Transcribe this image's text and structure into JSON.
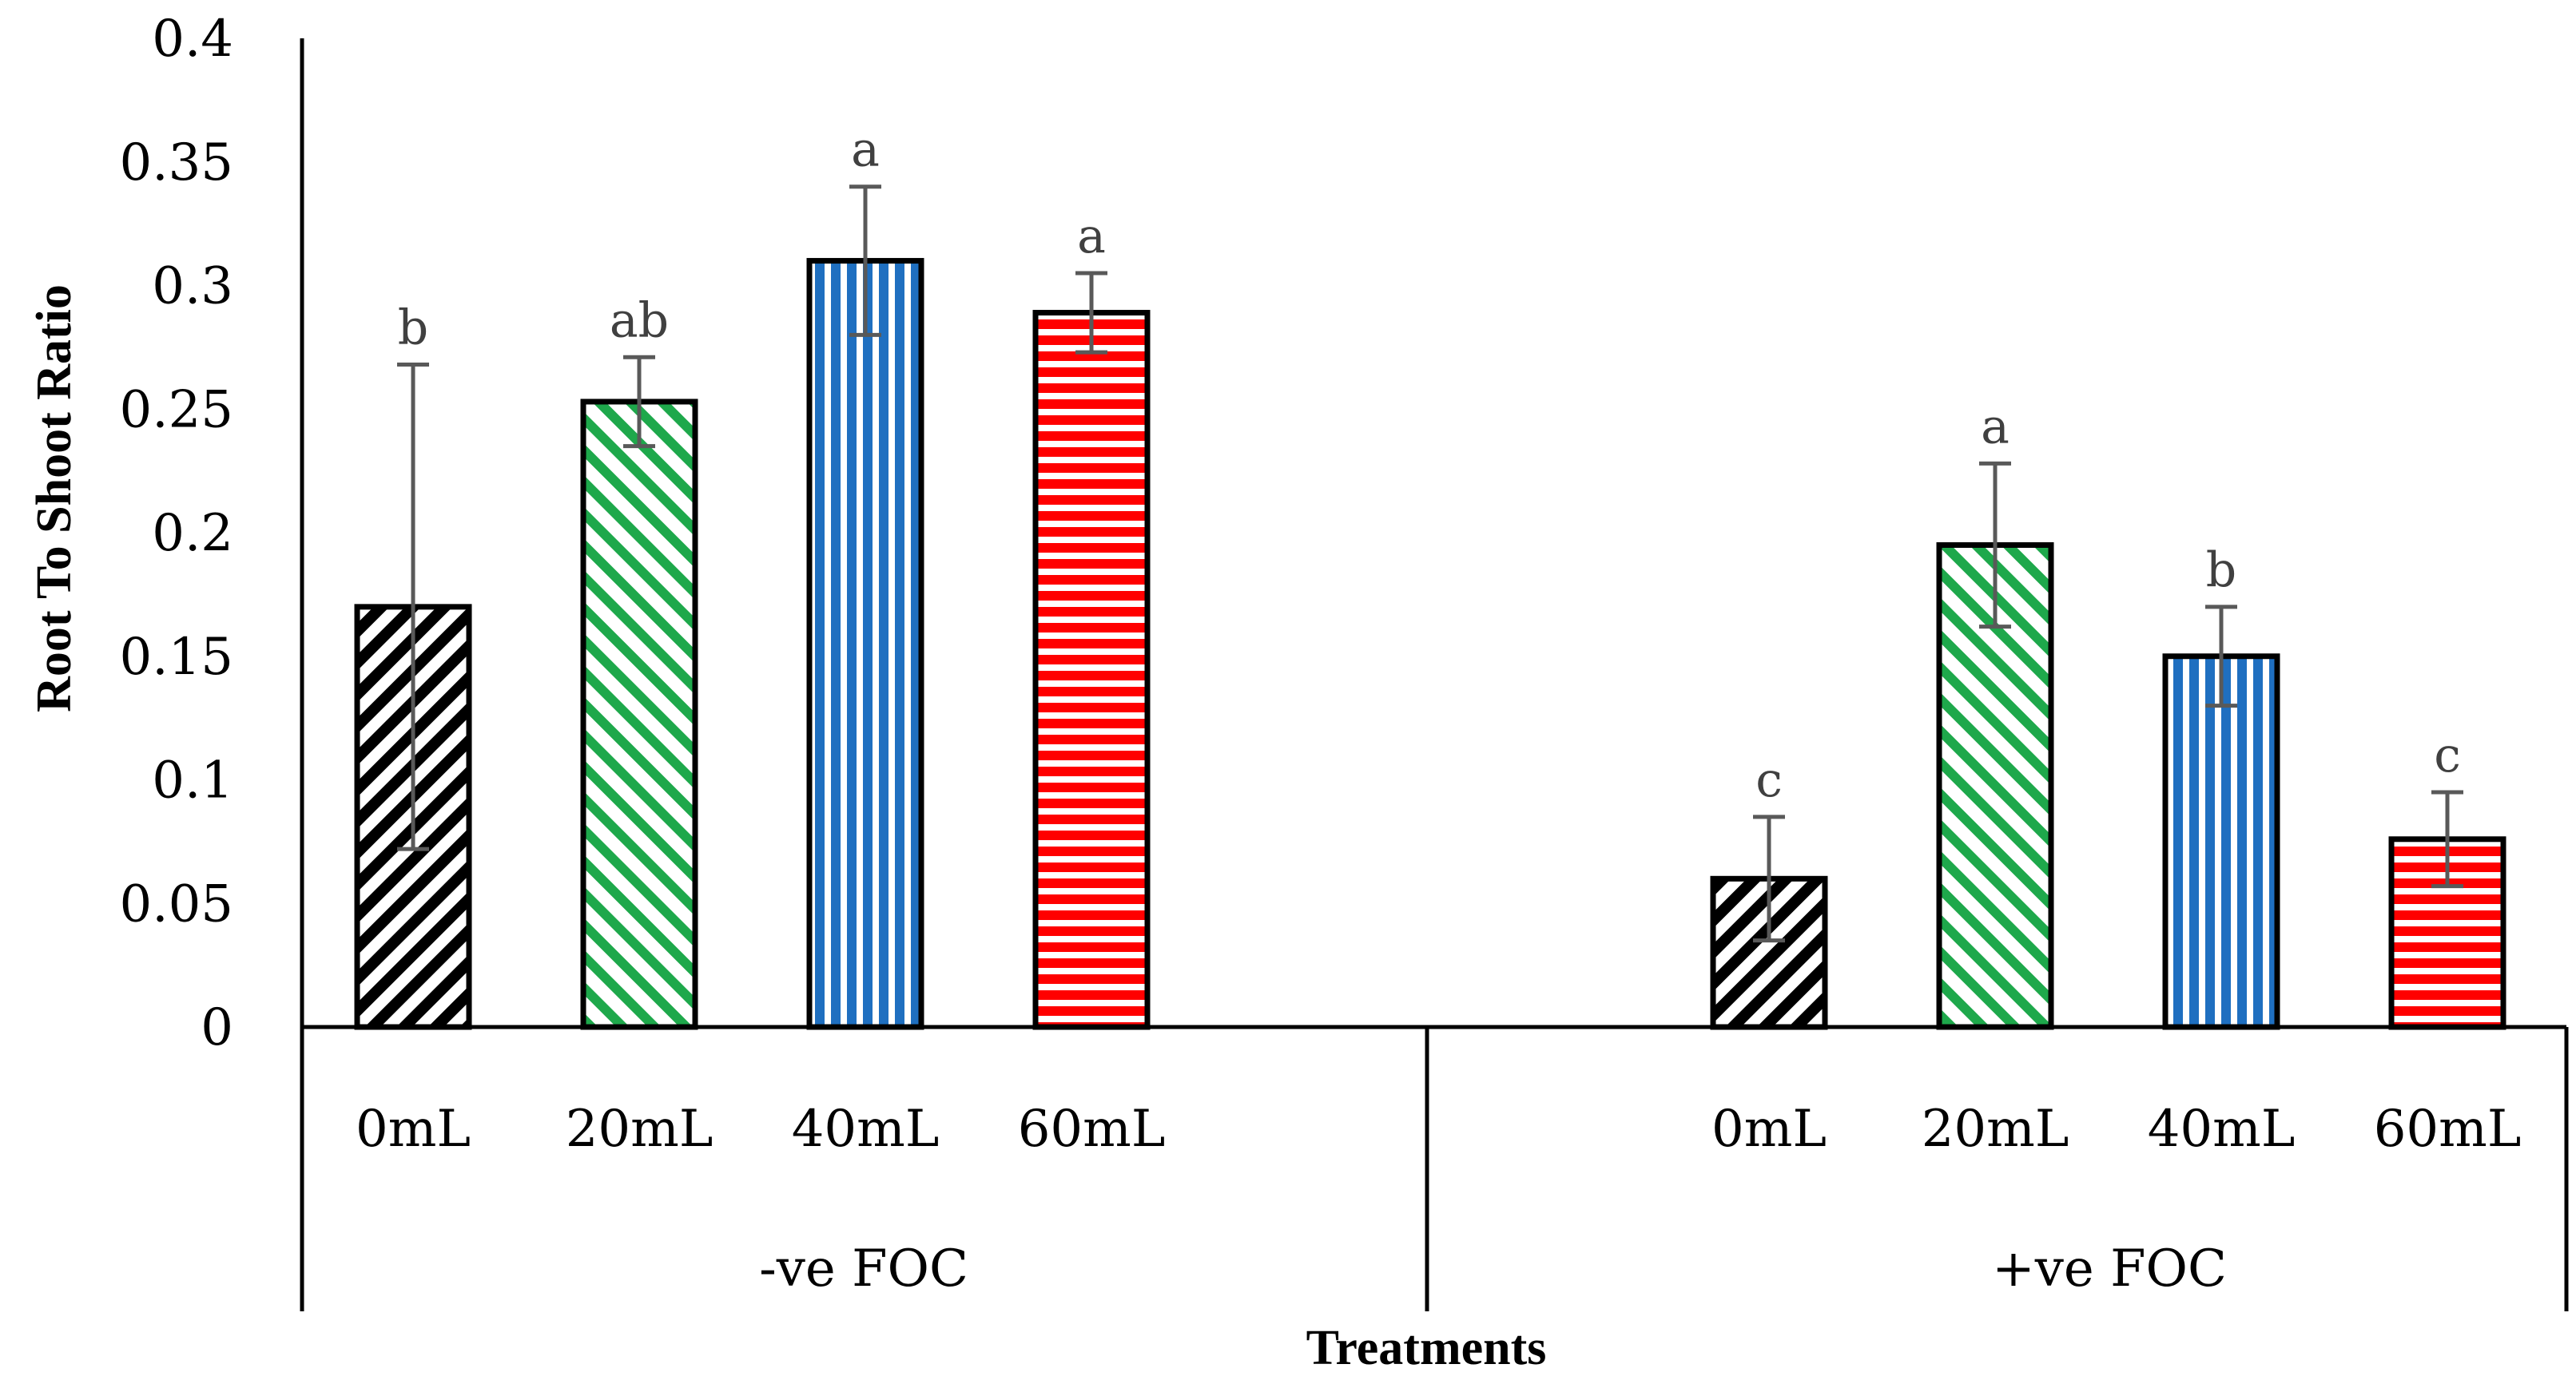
{
  "chart_data": {
    "type": "bar",
    "title": "",
    "xlabel": "Treatments",
    "ylabel": "Root To Shoot Ratio",
    "ylim": [
      0,
      0.4
    ],
    "yticks": [
      "0",
      "0.05",
      "0.1",
      "0.15",
      "0.2",
      "0.25",
      "0.3",
      "0.35",
      "0.4"
    ],
    "yticks_values": [
      0,
      0.05,
      0.1,
      0.15,
      0.2,
      0.25,
      0.3,
      0.35,
      0.4
    ],
    "grid": false,
    "legend": "none",
    "series_styles": [
      {
        "category": "0mL",
        "pattern": "diagonal-down",
        "color": "#000000"
      },
      {
        "category": "20mL",
        "pattern": "diagonal-up",
        "color": "#1ea84b"
      },
      {
        "category": "40mL",
        "pattern": "vertical-stripes",
        "color": "#1f6fc0"
      },
      {
        "category": "60mL",
        "pattern": "horizontal-stripes",
        "color": "#ff0000"
      }
    ],
    "groups": [
      {
        "name": "-ve FOC",
        "bars": [
          {
            "category": "0mL",
            "value": 0.17,
            "error": 0.098,
            "letter": "b"
          },
          {
            "category": "20mL",
            "value": 0.253,
            "error": 0.018,
            "letter": "ab"
          },
          {
            "category": "40mL",
            "value": 0.31,
            "error": 0.03,
            "letter": "a"
          },
          {
            "category": "60mL",
            "value": 0.289,
            "error": 0.016,
            "letter": "a"
          }
        ]
      },
      {
        "name": "+ve FOC",
        "bars": [
          {
            "category": "0mL",
            "value": 0.06,
            "error": 0.025,
            "letter": "c"
          },
          {
            "category": "20mL",
            "value": 0.195,
            "error": 0.033,
            "letter": "a"
          },
          {
            "category": "40mL",
            "value": 0.15,
            "error": 0.02,
            "letter": "b"
          },
          {
            "category": "60mL",
            "value": 0.076,
            "error": 0.019,
            "letter": "c"
          }
        ]
      }
    ]
  }
}
